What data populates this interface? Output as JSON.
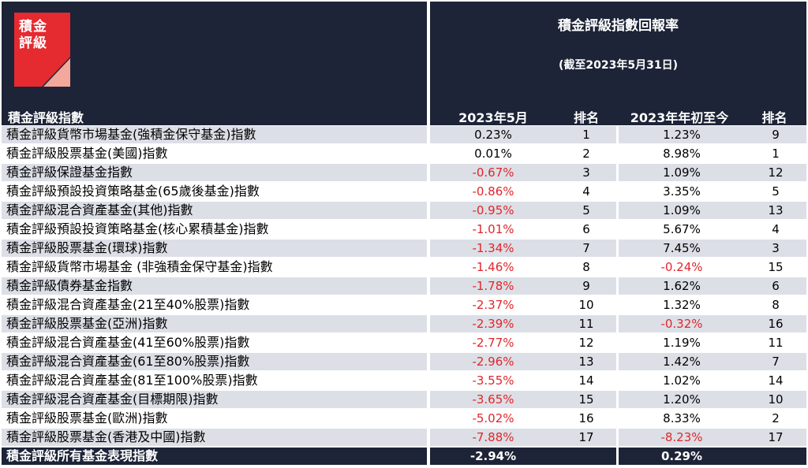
{
  "logo": {
    "line1": "積金",
    "line2": "評級",
    "color_red": "#e52a30",
    "color_pink": "#f4a79b"
  },
  "header": {
    "title": "積金評級指數回報率",
    "subtitle": "(截至2023年5月31日)",
    "col_index": "積金評級指數",
    "col_may": "2023年5月",
    "col_rank1": "排名",
    "col_ytd": "2023年年初至今",
    "col_rank2": "排名"
  },
  "colors": {
    "navy": "#1d2437",
    "row_gray": "#dcdfe6",
    "negative": "#e0262b"
  },
  "rows": [
    {
      "name": "積金評級貨幣市場基金(強積金保守基金)指數",
      "may": "0.23%",
      "rank_may": "1",
      "ytd": "1.23%",
      "rank_ytd": "9"
    },
    {
      "name": "積金評級股票基金(美國)指數",
      "may": "0.01%",
      "rank_may": "2",
      "ytd": "8.98%",
      "rank_ytd": "1"
    },
    {
      "name": "積金評級保證基金指數",
      "may": "-0.67%",
      "rank_may": "3",
      "ytd": "1.09%",
      "rank_ytd": "12"
    },
    {
      "name": "積金評級預設投資策略基金(65歲後基金)指數",
      "may": "-0.86%",
      "rank_may": "4",
      "ytd": "3.35%",
      "rank_ytd": "5"
    },
    {
      "name": "積金評級混合資產基金(其他)指數",
      "may": "-0.95%",
      "rank_may": "5",
      "ytd": "1.09%",
      "rank_ytd": "13"
    },
    {
      "name": "積金評級預設投資策略基金(核心累積基金)指數",
      "may": "-1.01%",
      "rank_may": "6",
      "ytd": "5.67%",
      "rank_ytd": "4"
    },
    {
      "name": "積金評級股票基金(環球)指數",
      "may": "-1.34%",
      "rank_may": "7",
      "ytd": "7.45%",
      "rank_ytd": "3"
    },
    {
      "name": "積金評級貨幣市場基金 (非強積金保守基金)指數",
      "may": "-1.46%",
      "rank_may": "8",
      "ytd": "-0.24%",
      "rank_ytd": "15"
    },
    {
      "name": "積金評級債券基金指數",
      "may": "-1.78%",
      "rank_may": "9",
      "ytd": "1.62%",
      "rank_ytd": "6"
    },
    {
      "name": "積金評級混合資產基金(21至40%股票)指數",
      "may": "-2.37%",
      "rank_may": "10",
      "ytd": "1.32%",
      "rank_ytd": "8"
    },
    {
      "name": "積金評級股票基金(亞洲)指數",
      "may": "-2.39%",
      "rank_may": "11",
      "ytd": "-0.32%",
      "rank_ytd": "16"
    },
    {
      "name": "積金評級混合資產基金(41至60%股票)指數",
      "may": "-2.77%",
      "rank_may": "12",
      "ytd": "1.19%",
      "rank_ytd": "11"
    },
    {
      "name": "積金評級混合資產基金(61至80%股票)指數",
      "may": "-2.96%",
      "rank_may": "13",
      "ytd": "1.42%",
      "rank_ytd": "7"
    },
    {
      "name": "積金評級混合資產基金(81至100%股票)指數",
      "may": "-3.55%",
      "rank_may": "14",
      "ytd": "1.02%",
      "rank_ytd": "14"
    },
    {
      "name": "積金評級混合資產基金(目標期限)指數",
      "may": "-3.65%",
      "rank_may": "15",
      "ytd": "1.20%",
      "rank_ytd": "10"
    },
    {
      "name": "積金評級股票基金(歐洲)指數",
      "may": "-5.02%",
      "rank_may": "16",
      "ytd": "8.33%",
      "rank_ytd": "2"
    },
    {
      "name": "積金評級股票基金(香港及中國)指數",
      "may": "-7.88%",
      "rank_may": "17",
      "ytd": "-8.23%",
      "rank_ytd": "17"
    }
  ],
  "footer": {
    "name": "積金評級所有基金表現指數",
    "may": "-2.94%",
    "ytd": "0.29%"
  }
}
